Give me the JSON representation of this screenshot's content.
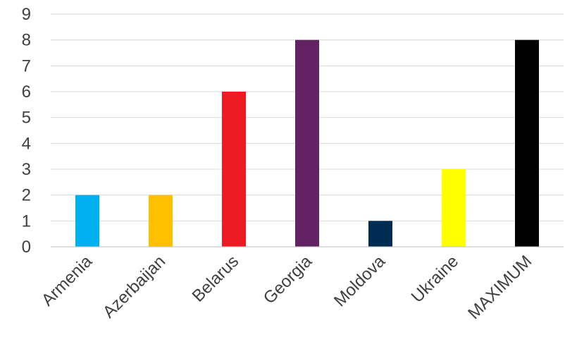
{
  "chart_data": {
    "type": "bar",
    "categories": [
      "Armenia",
      "Azerbaijan",
      "Belarus",
      "Georgia",
      "Moldova",
      "Ukraine",
      "MAXIMUM"
    ],
    "values": [
      2,
      2,
      6,
      8,
      1,
      3,
      8
    ],
    "colors": [
      "#00b0f0",
      "#ffc000",
      "#ed1c24",
      "#632263",
      "#002b52",
      "#ffff00",
      "#000000"
    ],
    "title": "",
    "xlabel": "",
    "ylabel": "",
    "ylim": [
      0,
      9
    ],
    "yticks": [
      "0",
      "1",
      "2",
      "3",
      "4",
      "5",
      "6",
      "7",
      "8",
      "9"
    ],
    "grid": true,
    "legend": "none"
  }
}
